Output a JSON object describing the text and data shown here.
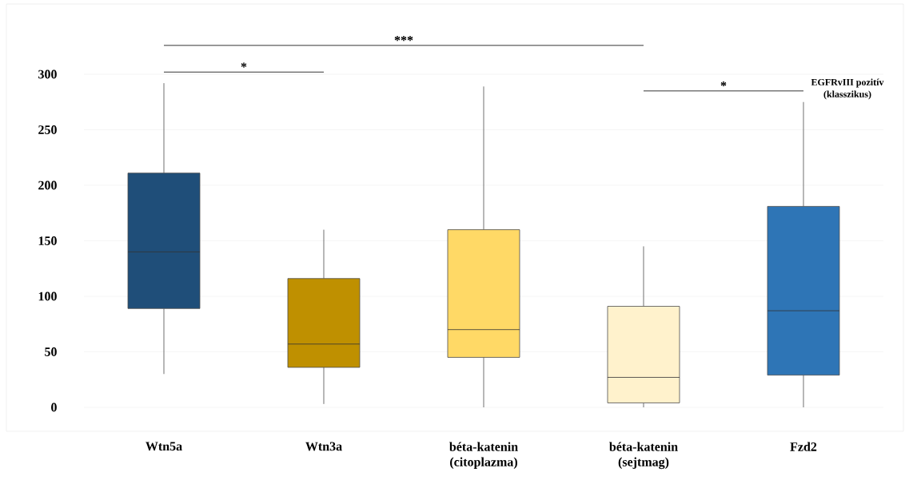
{
  "chart_data": {
    "type": "box",
    "categories": [
      "Wtn5a",
      "Wtn3a",
      "béta-katenin (citoplazma)",
      "béta-katenin (sejtmag)",
      "Fzd2"
    ],
    "colors": [
      "#1f4e79",
      "#bf9000",
      "#ffd966",
      "#fff2cc",
      "#2e75b6"
    ],
    "boxes": [
      {
        "low": 30,
        "q1": 89,
        "median": 140,
        "q3": 211,
        "high": 292
      },
      {
        "low": 3,
        "q1": 36,
        "median": 57,
        "q3": 116,
        "high": 160
      },
      {
        "low": 0,
        "q1": 45,
        "median": 70,
        "q3": 160,
        "high": 289
      },
      {
        "low": 0,
        "q1": 4,
        "median": 27,
        "q3": 91,
        "high": 145
      },
      {
        "low": 0,
        "q1": 29,
        "median": 87,
        "q3": 181,
        "high": 275
      }
    ],
    "ylim": [
      0,
      300
    ],
    "yticks": [
      0,
      50,
      100,
      150,
      200,
      250,
      300
    ],
    "grid": "y",
    "annotations": [
      "***",
      "*",
      "*",
      "EGFRvIII pozitív",
      "(klasszikus)"
    ]
  }
}
